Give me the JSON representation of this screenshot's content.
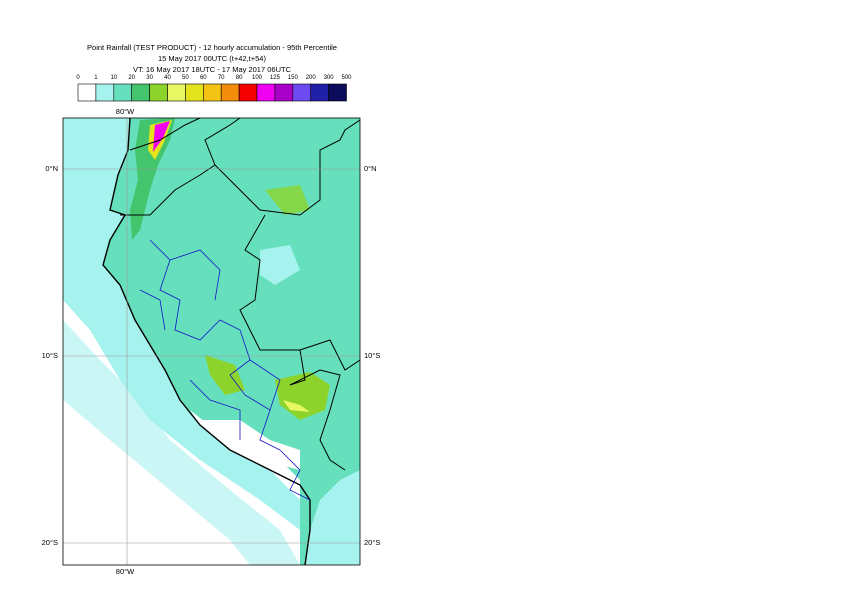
{
  "header": {
    "title_lines": [
      "Point Rainfall (TEST PRODUCT) - 12 hourly accumulation - 95th Percentile",
      "15 May 2017 00UTC (t+42,t+54)",
      "VT: 16 May 2017 18UTC - 17 May 2017 06UTC"
    ]
  },
  "legend": {
    "levels": [
      "0",
      "1",
      "10",
      "20",
      "30",
      "40",
      "50",
      "60",
      "70",
      "80",
      "100",
      "125",
      "150",
      "200",
      "300",
      "500"
    ],
    "colors": [
      "#ffffff",
      "#a6f2ee",
      "#66e0bc",
      "#44c46c",
      "#8cd42c",
      "#e8f864",
      "#e4e41c",
      "#f4c414",
      "#f48c0c",
      "#f40000",
      "#f000f0",
      "#a800c8",
      "#6c4cf0",
      "#2020a8",
      "#0c0c5c"
    ]
  },
  "map": {
    "lat_labels": [
      "0°N",
      "10°S",
      "20°S"
    ],
    "lon_labels": [
      "80°W"
    ]
  }
}
